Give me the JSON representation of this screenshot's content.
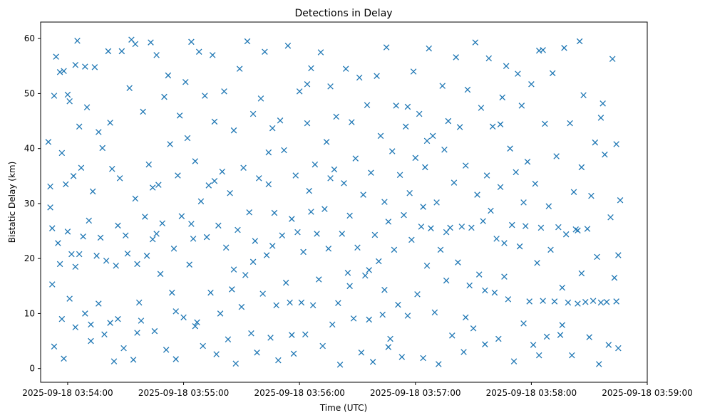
{
  "chart_data": {
    "type": "scatter",
    "title": "Detections in Delay",
    "xlabel": "Time (UTC)",
    "ylabel": "Bistatic Delay (km)",
    "marker": "x",
    "color": "#1f77b4",
    "grid": false,
    "legend": "none",
    "xlim": [
      "2025-09-18 03:53:46",
      "2025-09-18 03:59:00"
    ],
    "ylim": [
      -2.5,
      63
    ],
    "x_ticks": [
      "2025-09-18 03:54:00",
      "2025-09-18 03:55:00",
      "2025-09-18 03:56:00",
      "2025-09-18 03:57:00",
      "2025-09-18 03:58:00",
      "2025-09-18 03:59:00"
    ],
    "y_ticks": [
      0,
      10,
      20,
      30,
      40,
      50,
      60
    ],
    "points": [
      [
        "03:53:50",
        41.2
      ],
      [
        "03:53:51",
        33.1
      ],
      [
        "03:53:51",
        29.3
      ],
      [
        "03:53:52",
        25.5
      ],
      [
        "03:53:52",
        15.3
      ],
      [
        "03:53:53",
        4.0
      ],
      [
        "03:53:53",
        49.6
      ],
      [
        "03:53:54",
        56.7
      ],
      [
        "03:53:55",
        22.8
      ],
      [
        "03:53:56",
        19.0
      ],
      [
        "03:53:57",
        39.2
      ],
      [
        "03:53:57",
        9.0
      ],
      [
        "03:53:58",
        1.8
      ],
      [
        "03:53:58",
        54.1
      ],
      [
        "03:53:59",
        33.5
      ],
      [
        "03:54:00",
        24.9
      ],
      [
        "03:54:00",
        49.8
      ],
      [
        "03:54:01",
        48.6
      ],
      [
        "03:54:01",
        12.7
      ],
      [
        "03:54:02",
        20.8
      ],
      [
        "03:54:03",
        35.0
      ],
      [
        "03:54:04",
        55.2
      ],
      [
        "03:54:04",
        7.5
      ],
      [
        "03:54:05",
        59.6
      ],
      [
        "03:54:06",
        44.0
      ],
      [
        "03:54:06",
        20.8
      ],
      [
        "03:54:07",
        36.5
      ],
      [
        "03:54:08",
        24.0
      ],
      [
        "03:54:09",
        10.0
      ],
      [
        "03:54:09",
        54.9
      ],
      [
        "03:54:10",
        47.5
      ],
      [
        "03:54:11",
        26.9
      ],
      [
        "03:54:12",
        5.0
      ],
      [
        "03:54:13",
        32.2
      ],
      [
        "03:54:14",
        54.8
      ],
      [
        "03:54:15",
        20.5
      ],
      [
        "03:54:16",
        11.8
      ],
      [
        "03:54:17",
        23.8
      ],
      [
        "03:54:18",
        40.1
      ],
      [
        "03:54:19",
        6.2
      ],
      [
        "03:54:20",
        19.6
      ],
      [
        "03:54:21",
        57.7
      ],
      [
        "03:54:22",
        44.7
      ],
      [
        "03:54:22",
        8.3
      ],
      [
        "03:54:23",
        36.3
      ],
      [
        "03:54:24",
        1.3
      ],
      [
        "03:54:25",
        18.7
      ],
      [
        "03:54:26",
        26.0
      ],
      [
        "03:54:27",
        34.6
      ],
      [
        "03:54:28",
        57.7
      ],
      [
        "03:54:29",
        3.7
      ],
      [
        "03:54:30",
        24.2
      ],
      [
        "03:54:31",
        20.9
      ],
      [
        "03:54:32",
        51.0
      ],
      [
        "03:54:33",
        59.8
      ],
      [
        "03:54:34",
        1.6
      ],
      [
        "03:54:35",
        30.9
      ],
      [
        "03:54:35",
        59.0
      ],
      [
        "03:54:36",
        19.0
      ],
      [
        "03:54:37",
        12.0
      ],
      [
        "03:54:38",
        8.7
      ],
      [
        "03:54:39",
        46.7
      ],
      [
        "03:54:40",
        27.6
      ],
      [
        "03:54:41",
        20.5
      ],
      [
        "03:54:42",
        37.1
      ],
      [
        "03:54:43",
        59.3
      ],
      [
        "03:54:44",
        23.5
      ],
      [
        "03:54:45",
        6.8
      ],
      [
        "03:54:46",
        57.0
      ],
      [
        "03:54:47",
        33.4
      ],
      [
        "03:54:48",
        17.2
      ],
      [
        "03:54:49",
        26.4
      ],
      [
        "03:54:50",
        49.4
      ],
      [
        "03:54:51",
        3.4
      ],
      [
        "03:54:52",
        53.3
      ],
      [
        "03:54:53",
        40.8
      ],
      [
        "03:54:54",
        13.8
      ],
      [
        "03:54:55",
        21.8
      ],
      [
        "03:54:56",
        1.7
      ],
      [
        "03:54:57",
        35.1
      ],
      [
        "03:54:58",
        46.0
      ],
      [
        "03:54:59",
        27.7
      ],
      [
        "03:55:00",
        9.3
      ],
      [
        "03:55:01",
        52.1
      ],
      [
        "03:55:02",
        41.9
      ],
      [
        "03:55:03",
        18.9
      ],
      [
        "03:55:04",
        59.4
      ],
      [
        "03:55:05",
        23.6
      ],
      [
        "03:55:06",
        37.7
      ],
      [
        "03:55:07",
        8.4
      ],
      [
        "03:55:08",
        57.6
      ],
      [
        "03:55:09",
        30.4
      ],
      [
        "03:55:10",
        4.1
      ],
      [
        "03:55:11",
        49.6
      ],
      [
        "03:55:12",
        23.9
      ],
      [
        "03:55:13",
        33.3
      ],
      [
        "03:55:14",
        13.8
      ],
      [
        "03:55:15",
        57.0
      ],
      [
        "03:55:16",
        44.9
      ],
      [
        "03:55:17",
        2.6
      ],
      [
        "03:55:18",
        26.0
      ],
      [
        "03:55:19",
        10.0
      ],
      [
        "03:55:20",
        35.8
      ],
      [
        "03:55:21",
        50.4
      ],
      [
        "03:55:22",
        22.0
      ],
      [
        "03:55:23",
        5.3
      ],
      [
        "03:55:24",
        31.9
      ],
      [
        "03:55:25",
        14.4
      ],
      [
        "03:55:26",
        43.3
      ],
      [
        "03:55:27",
        0.9
      ],
      [
        "03:55:28",
        25.2
      ],
      [
        "03:55:29",
        54.5
      ],
      [
        "03:55:30",
        11.2
      ],
      [
        "03:55:31",
        36.5
      ],
      [
        "03:55:32",
        17.0
      ],
      [
        "03:55:33",
        59.5
      ],
      [
        "03:55:34",
        28.4
      ],
      [
        "03:55:35",
        6.4
      ],
      [
        "03:55:36",
        46.3
      ],
      [
        "03:55:37",
        23.2
      ],
      [
        "03:55:38",
        2.9
      ],
      [
        "03:55:39",
        34.6
      ],
      [
        "03:55:40",
        49.1
      ],
      [
        "03:55:41",
        13.6
      ],
      [
        "03:55:42",
        57.6
      ],
      [
        "03:55:43",
        20.6
      ],
      [
        "03:55:44",
        33.5
      ],
      [
        "03:55:45",
        5.6
      ],
      [
        "03:55:46",
        43.7
      ],
      [
        "03:55:47",
        28.3
      ],
      [
        "03:55:48",
        11.5
      ],
      [
        "03:55:49",
        1.5
      ],
      [
        "03:55:50",
        45.1
      ],
      [
        "03:55:51",
        24.2
      ],
      [
        "03:55:52",
        39.7
      ],
      [
        "03:55:53",
        15.6
      ],
      [
        "03:55:54",
        58.7
      ],
      [
        "03:55:55",
        12.0
      ],
      [
        "03:55:56",
        27.2
      ],
      [
        "03:55:57",
        2.7
      ],
      [
        "03:55:58",
        35.1
      ],
      [
        "03:55:59",
        24.8
      ],
      [
        "03:56:00",
        50.4
      ],
      [
        "03:56:01",
        12.0
      ],
      [
        "03:56:02",
        21.2
      ],
      [
        "03:56:03",
        6.2
      ],
      [
        "03:56:04",
        44.6
      ],
      [
        "03:56:05",
        32.3
      ],
      [
        "03:56:06",
        54.6
      ],
      [
        "03:56:07",
        11.5
      ],
      [
        "03:56:08",
        37.1
      ],
      [
        "03:56:09",
        24.5
      ],
      [
        "03:56:10",
        16.2
      ],
      [
        "03:56:11",
        57.5
      ],
      [
        "03:56:12",
        4.1
      ],
      [
        "03:56:13",
        29.0
      ],
      [
        "03:56:14",
        41.2
      ],
      [
        "03:56:15",
        21.8
      ],
      [
        "03:56:16",
        51.3
      ],
      [
        "03:56:17",
        8.0
      ],
      [
        "03:56:18",
        36.2
      ],
      [
        "03:56:19",
        45.8
      ],
      [
        "03:56:20",
        11.9
      ],
      [
        "03:56:21",
        0.7
      ],
      [
        "03:56:22",
        24.5
      ],
      [
        "03:56:23",
        33.7
      ],
      [
        "03:56:24",
        54.5
      ],
      [
        "03:56:25",
        17.4
      ],
      [
        "03:56:26",
        27.8
      ],
      [
        "03:56:27",
        44.8
      ],
      [
        "03:56:28",
        9.1
      ],
      [
        "03:56:29",
        38.2
      ],
      [
        "03:56:30",
        22.0
      ],
      [
        "03:56:31",
        52.9
      ],
      [
        "03:56:32",
        2.9
      ],
      [
        "03:56:33",
        31.6
      ],
      [
        "03:56:34",
        16.9
      ],
      [
        "03:56:35",
        47.9
      ],
      [
        "03:56:36",
        8.9
      ],
      [
        "03:56:37",
        35.6
      ],
      [
        "03:56:38",
        1.2
      ],
      [
        "03:56:39",
        24.3
      ],
      [
        "03:56:40",
        53.2
      ],
      [
        "03:56:41",
        19.5
      ],
      [
        "03:56:42",
        42.3
      ],
      [
        "03:56:43",
        9.8
      ],
      [
        "03:56:44",
        30.3
      ],
      [
        "03:56:45",
        58.4
      ],
      [
        "03:56:46",
        26.7
      ],
      [
        "03:56:47",
        5.4
      ],
      [
        "03:56:48",
        39.5
      ],
      [
        "03:56:49",
        21.6
      ],
      [
        "03:56:50",
        47.8
      ],
      [
        "03:56:51",
        11.6
      ],
      [
        "03:56:52",
        35.2
      ],
      [
        "03:56:53",
        2.1
      ],
      [
        "03:56:54",
        27.9
      ],
      [
        "03:56:55",
        44.0
      ],
      [
        "03:56:56",
        9.6
      ],
      [
        "03:56:57",
        31.9
      ],
      [
        "03:56:58",
        23.4
      ],
      [
        "03:56:59",
        54.0
      ],
      [
        "03:57:00",
        38.3
      ],
      [
        "03:57:01",
        13.5
      ],
      [
        "03:57:02",
        46.3
      ],
      [
        "03:57:03",
        25.8
      ],
      [
        "03:57:04",
        1.9
      ],
      [
        "03:57:05",
        36.6
      ],
      [
        "03:57:06",
        18.7
      ],
      [
        "03:57:07",
        58.2
      ],
      [
        "03:57:08",
        25.5
      ],
      [
        "03:57:09",
        42.3
      ],
      [
        "03:57:10",
        10.2
      ],
      [
        "03:57:11",
        30.2
      ],
      [
        "03:57:12",
        0.8
      ],
      [
        "03:57:13",
        21.6
      ],
      [
        "03:57:14",
        51.4
      ],
      [
        "03:57:15",
        39.8
      ],
      [
        "03:57:16",
        16.0
      ],
      [
        "03:57:17",
        45.0
      ],
      [
        "03:57:18",
        25.6
      ],
      [
        "03:57:19",
        6.0
      ],
      [
        "03:57:20",
        33.8
      ],
      [
        "03:57:21",
        56.6
      ],
      [
        "03:57:22",
        19.3
      ],
      [
        "03:57:23",
        43.9
      ],
      [
        "03:57:24",
        25.8
      ],
      [
        "03:57:25",
        3.0
      ],
      [
        "03:57:26",
        36.9
      ],
      [
        "03:57:27",
        50.7
      ],
      [
        "03:57:28",
        15.1
      ],
      [
        "03:57:29",
        25.6
      ],
      [
        "03:57:30",
        7.3
      ],
      [
        "03:57:31",
        59.3
      ],
      [
        "03:57:32",
        31.6
      ],
      [
        "03:57:33",
        17.1
      ],
      [
        "03:57:34",
        47.4
      ],
      [
        "03:57:35",
        26.8
      ],
      [
        "03:57:36",
        4.4
      ],
      [
        "03:57:37",
        35.1
      ],
      [
        "03:57:38",
        56.4
      ],
      [
        "03:57:39",
        28.7
      ],
      [
        "03:57:40",
        44.0
      ],
      [
        "03:57:41",
        13.8
      ],
      [
        "03:57:42",
        23.6
      ],
      [
        "03:57:43",
        5.4
      ],
      [
        "03:57:44",
        33.0
      ],
      [
        "03:57:45",
        49.3
      ],
      [
        "03:57:46",
        22.8
      ],
      [
        "03:57:47",
        55.0
      ],
      [
        "03:57:48",
        12.6
      ],
      [
        "03:57:49",
        40.0
      ],
      [
        "03:57:50",
        26.1
      ],
      [
        "03:57:51",
        1.3
      ],
      [
        "03:57:52",
        35.7
      ],
      [
        "03:57:53",
        53.6
      ],
      [
        "03:57:54",
        22.2
      ],
      [
        "03:57:55",
        47.8
      ],
      [
        "03:57:56",
        8.2
      ],
      [
        "03:57:57",
        25.9
      ],
      [
        "03:57:58",
        37.6
      ],
      [
        "03:57:59",
        12.2
      ],
      [
        "03:58:00",
        51.7
      ],
      [
        "03:58:01",
        4.3
      ],
      [
        "03:58:02",
        33.6
      ],
      [
        "03:58:03",
        19.2
      ],
      [
        "03:58:04",
        57.8
      ],
      [
        "03:58:05",
        25.6
      ],
      [
        "03:58:06",
        12.3
      ],
      [
        "03:58:07",
        44.5
      ],
      [
        "03:58:08",
        5.8
      ],
      [
        "03:58:09",
        29.5
      ],
      [
        "03:58:10",
        21.6
      ],
      [
        "03:58:11",
        53.7
      ],
      [
        "03:58:12",
        12.2
      ],
      [
        "03:58:13",
        38.6
      ],
      [
        "03:58:14",
        25.7
      ],
      [
        "03:58:15",
        6.1
      ],
      [
        "03:58:16",
        14.7
      ],
      [
        "03:58:17",
        58.3
      ],
      [
        "03:58:18",
        24.4
      ],
      [
        "03:58:19",
        12.0
      ],
      [
        "03:58:20",
        44.6
      ],
      [
        "03:58:21",
        2.4
      ],
      [
        "03:58:22",
        32.1
      ],
      [
        "03:58:23",
        25.3
      ],
      [
        "03:58:24",
        11.8
      ],
      [
        "03:58:25",
        59.5
      ],
      [
        "03:58:26",
        17.3
      ],
      [
        "03:58:27",
        49.7
      ],
      [
        "03:58:28",
        12.1
      ],
      [
        "03:58:29",
        25.4
      ],
      [
        "03:58:30",
        5.7
      ],
      [
        "03:58:31",
        31.4
      ],
      [
        "03:58:32",
        12.3
      ],
      [
        "03:58:33",
        41.1
      ],
      [
        "03:58:34",
        20.3
      ],
      [
        "03:58:35",
        0.8
      ],
      [
        "03:58:36",
        12.0
      ],
      [
        "03:58:37",
        48.2
      ],
      [
        "03:58:38",
        38.9
      ],
      [
        "03:58:39",
        12.1
      ],
      [
        "03:58:40",
        4.3
      ],
      [
        "03:58:41",
        27.5
      ],
      [
        "03:58:42",
        56.3
      ],
      [
        "03:58:43",
        16.5
      ],
      [
        "03:58:44",
        12.2
      ],
      [
        "03:58:45",
        20.6
      ],
      [
        "03:58:45",
        3.7
      ],
      [
        "03:58:46",
        30.6
      ],
      [
        "03:54:12",
        8.0
      ],
      [
        "03:54:26",
        9.0
      ],
      [
        "03:54:46",
        24.5
      ],
      [
        "03:55:06",
        7.7
      ],
      [
        "03:55:26",
        18.0
      ],
      [
        "03:55:46",
        22.3
      ],
      [
        "03:56:06",
        28.5
      ],
      [
        "03:56:26",
        15.0
      ],
      [
        "03:56:46",
        3.9
      ],
      [
        "03:57:06",
        41.4
      ],
      [
        "03:57:26",
        9.3
      ],
      [
        "03:57:46",
        16.7
      ],
      [
        "03:58:06",
        57.9
      ],
      [
        "03:58:26",
        36.6
      ],
      [
        "03:53:56",
        53.9
      ],
      [
        "03:54:16",
        43.0
      ],
      [
        "03:54:36",
        6.5
      ],
      [
        "03:54:56",
        10.4
      ],
      [
        "03:55:16",
        34.1
      ],
      [
        "03:55:36",
        19.4
      ],
      [
        "03:55:56",
        6.1
      ],
      [
        "03:56:16",
        34.6
      ],
      [
        "03:56:36",
        17.9
      ],
      [
        "03:56:56",
        47.6
      ],
      [
        "03:57:16",
        24.8
      ],
      [
        "03:57:36",
        14.2
      ],
      [
        "03:57:56",
        30.2
      ],
      [
        "03:58:16",
        7.9
      ],
      [
        "03:58:36",
        45.6
      ],
      [
        "03:54:44",
        32.9
      ],
      [
        "03:55:44",
        39.3
      ],
      [
        "03:56:44",
        14.3
      ],
      [
        "03:57:44",
        44.4
      ],
      [
        "03:58:04",
        2.4
      ],
      [
        "03:58:44",
        40.8
      ],
      [
        "03:54:04",
        18.5
      ],
      [
        "03:55:04",
        26.3
      ],
      [
        "03:56:04",
        51.7
      ],
      [
        "03:57:04",
        29.4
      ],
      [
        "03:58:24",
        25.1
      ]
    ]
  }
}
